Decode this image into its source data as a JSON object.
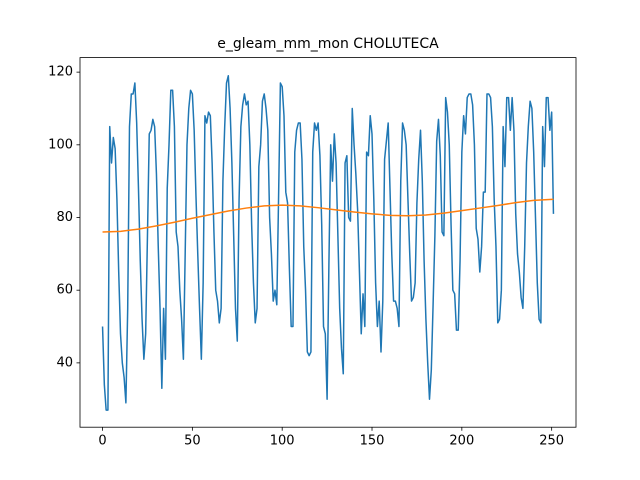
{
  "chart_data": {
    "type": "line",
    "title": "e_gleam_mm_mon CHOLUTECA",
    "x": [
      0,
      1,
      2,
      3,
      4,
      5,
      6,
      7,
      8,
      9,
      10,
      11,
      12,
      13,
      14,
      15,
      16,
      17,
      18,
      19,
      20,
      21,
      22,
      23,
      24,
      25,
      26,
      27,
      28,
      29,
      30,
      31,
      32,
      33,
      34,
      35,
      36,
      37,
      38,
      39,
      40,
      41,
      42,
      43,
      44,
      45,
      46,
      47,
      48,
      49,
      50,
      51,
      52,
      53,
      54,
      55,
      56,
      57,
      58,
      59,
      60,
      61,
      62,
      63,
      64,
      65,
      66,
      67,
      68,
      69,
      70,
      71,
      72,
      73,
      74,
      75,
      76,
      77,
      78,
      79,
      80,
      81,
      82,
      83,
      84,
      85,
      86,
      87,
      88,
      89,
      90,
      91,
      92,
      93,
      94,
      95,
      96,
      97,
      98,
      99,
      100,
      101,
      102,
      103,
      104,
      105,
      106,
      107,
      108,
      109,
      110,
      111,
      112,
      113,
      114,
      115,
      116,
      117,
      118,
      119,
      120,
      121,
      122,
      123,
      124,
      125,
      126,
      127,
      128,
      129,
      130,
      131,
      132,
      133,
      134,
      135,
      136,
      137,
      138,
      139,
      140,
      141,
      142,
      143,
      144,
      145,
      146,
      147,
      148,
      149,
      150,
      151,
      152,
      153,
      154,
      155,
      156,
      157,
      158,
      159,
      160,
      161,
      162,
      163,
      164,
      165,
      166,
      167,
      168,
      169,
      170,
      171,
      172,
      173,
      174,
      175,
      176,
      177,
      178,
      179,
      180,
      181,
      182,
      183,
      184,
      185,
      186,
      187,
      188,
      189,
      190,
      191,
      192,
      193,
      194,
      195,
      196,
      197,
      198,
      199,
      200,
      201,
      202,
      203,
      204,
      205,
      206,
      207,
      208,
      209,
      210,
      211,
      212,
      213,
      214,
      215,
      216,
      217,
      218,
      219,
      220,
      221,
      222,
      223,
      224,
      225,
      226,
      227,
      228,
      229,
      230,
      231,
      232,
      233,
      234,
      235,
      236,
      237,
      238,
      239,
      240,
      241,
      242,
      243,
      244,
      245,
      246,
      247,
      248,
      249,
      250,
      251
    ],
    "series": [
      {
        "color": "#1f77b4",
        "values": [
          50,
          34,
          27,
          27,
          105,
          95,
          102,
          99,
          85,
          65,
          48,
          40,
          36,
          29,
          55,
          105,
          114,
          114,
          117,
          106,
          88,
          68,
          52,
          41,
          48,
          75,
          103,
          104,
          107,
          105,
          92,
          72,
          55,
          33,
          55,
          41,
          88,
          100,
          115,
          115,
          105,
          76,
          72,
          60,
          52,
          41,
          70,
          100,
          110,
          115,
          114,
          104,
          86,
          70,
          55,
          41,
          62,
          108,
          106,
          109,
          108,
          95,
          76,
          60,
          57,
          51,
          55,
          90,
          105,
          117,
          119,
          110,
          95,
          75,
          55,
          46,
          85,
          105,
          111,
          114,
          111,
          112,
          100,
          78,
          62,
          51,
          55,
          94,
          100,
          112,
          114,
          110,
          104,
          80,
          70,
          57,
          60,
          56,
          86,
          117,
          116,
          108,
          87,
          84,
          66,
          50,
          50,
          98,
          104,
          106,
          106,
          96,
          72,
          60,
          43,
          42,
          43,
          98,
          106,
          104,
          106,
          97,
          78,
          50,
          48,
          30,
          67,
          100,
          90,
          103,
          95,
          75,
          55,
          44,
          37,
          95,
          97,
          80,
          79,
          110,
          100,
          92,
          82,
          65,
          48,
          59,
          50,
          98,
          97,
          108,
          103,
          85,
          62,
          50,
          57,
          43,
          57,
          96,
          101,
          106,
          88,
          70,
          57,
          57,
          55,
          50,
          90,
          106,
          104,
          100,
          85,
          70,
          57,
          58,
          62,
          84,
          96,
          104,
          90,
          68,
          52,
          40,
          30,
          38,
          56,
          75,
          101,
          107,
          97,
          76,
          75,
          113,
          109,
          100,
          78,
          60,
          59,
          49,
          49,
          68,
          98,
          108,
          103,
          113,
          114,
          114,
          111,
          100,
          77,
          74,
          65,
          72,
          87,
          87,
          114,
          114,
          113,
          105,
          85,
          72,
          51,
          52,
          60,
          105,
          94,
          113,
          113,
          104,
          113,
          104,
          81,
          70,
          65,
          58,
          55,
          72,
          95,
          105,
          112,
          110,
          98,
          80,
          62,
          52,
          51,
          105,
          94,
          113,
          113,
          104,
          109,
          81
        ]
      },
      {
        "color": "#ff7f0e",
        "x": [
          0,
          10,
          20,
          30,
          40,
          50,
          60,
          70,
          80,
          90,
          100,
          110,
          120,
          130,
          140,
          150,
          160,
          170,
          180,
          190,
          200,
          210,
          220,
          230,
          240,
          250,
          251
        ],
        "values": [
          76,
          76.2,
          76.8,
          77.7,
          78.7,
          79.8,
          80.8,
          81.8,
          82.6,
          83.2,
          83.4,
          83.2,
          82.7,
          82.1,
          81.5,
          81.0,
          80.6,
          80.5,
          80.7,
          81.2,
          81.9,
          82.6,
          83.3,
          84.1,
          84.7,
          85.0,
          85.0
        ]
      }
    ],
    "xlim": [
      -12.55,
      263.55
    ],
    "xticks": [
      0,
      50,
      100,
      150,
      200,
      250
    ],
    "ylim": [
      22.3,
      124
    ],
    "yticks": [
      40,
      60,
      80,
      100,
      120
    ]
  }
}
